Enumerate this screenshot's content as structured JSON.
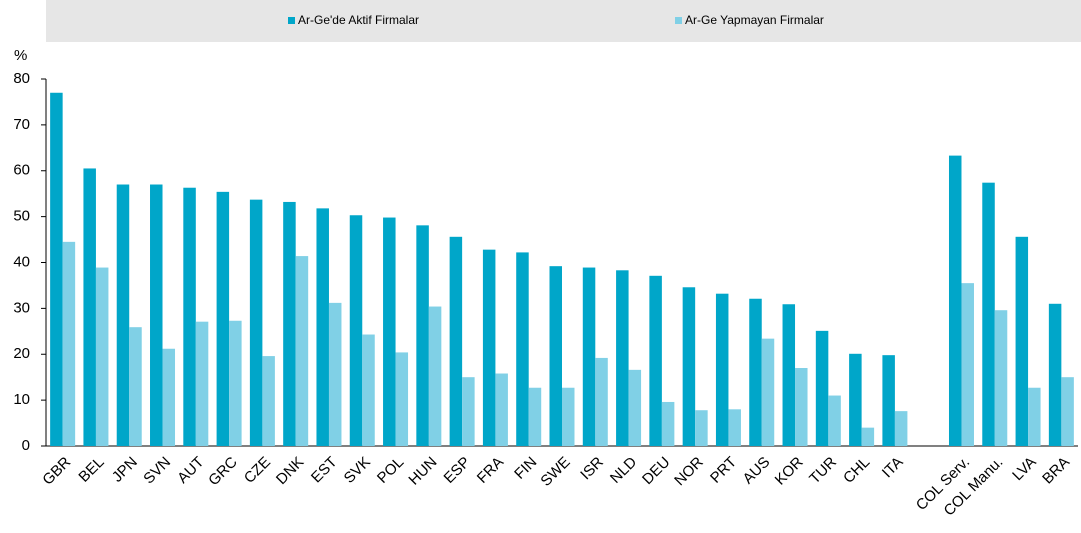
{
  "chart_data": {
    "type": "bar",
    "y_label": "%",
    "categories": [
      "GBR",
      "BEL",
      "JPN",
      "SVN",
      "AUT",
      "GRC",
      "CZE",
      "DNK",
      "EST",
      "SVK",
      "POL",
      "HUN",
      "ESP",
      "FRA",
      "FIN",
      "SWE",
      "ISR",
      "NLD",
      "DEU",
      "NOR",
      "PRT",
      "AUS",
      "KOR",
      "TUR",
      "CHL",
      "ITA",
      null,
      "COL Serv.",
      "COL Manu.",
      "LVA",
      "BRA"
    ],
    "series": [
      {
        "name": "Ar-Ge'de Aktif Firmalar",
        "color": "#00a6c9",
        "values": [
          77,
          60.5,
          57,
          57,
          56.3,
          55.4,
          53.7,
          53.2,
          51.8,
          50.3,
          49.8,
          48.1,
          45.6,
          42.8,
          42.2,
          39.2,
          38.9,
          38.3,
          37.1,
          34.6,
          33.2,
          32.1,
          30.9,
          25.1,
          20.1,
          19.8,
          null,
          63.3,
          57.4,
          45.6,
          31
        ]
      },
      {
        "name": "Ar-Ge Yapmayan Firmalar",
        "color": "#80d0e6",
        "values": [
          44.5,
          38.9,
          25.9,
          21.2,
          27.1,
          27.3,
          19.6,
          41.4,
          31.2,
          24.3,
          20.4,
          30.4,
          15,
          15.8,
          12.7,
          12.7,
          19.2,
          16.6,
          9.6,
          7.8,
          8,
          23.4,
          17,
          11,
          4,
          7.6,
          null,
          35.5,
          29.6,
          12.7,
          15
        ]
      }
    ],
    "ylim": [
      0,
      80
    ],
    "yticks": [
      0,
      10,
      20,
      30,
      40,
      50,
      60,
      70,
      80
    ],
    "legend": "top"
  }
}
